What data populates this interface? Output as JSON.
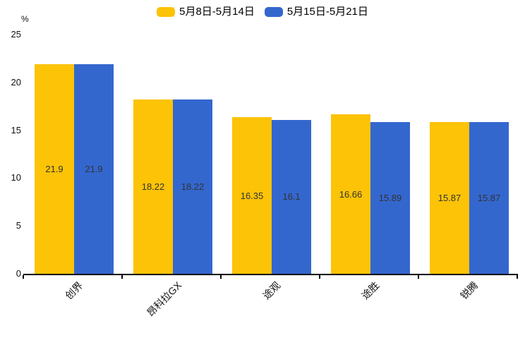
{
  "chart_data": {
    "type": "bar",
    "title": "",
    "unit_label": "%",
    "xlabel": "",
    "ylabel": "%",
    "categories": [
      "创界",
      "昂科拉GX",
      "途观",
      "途胜",
      "锐腾"
    ],
    "series": [
      {
        "name": "5月8日-5月14日",
        "color": "#FCC307",
        "values": [
          21.9,
          18.22,
          16.35,
          16.66,
          15.87
        ]
      },
      {
        "name": "5月15日-5月21日",
        "color": "#3467CE",
        "values": [
          21.9,
          18.22,
          16.1,
          15.89,
          15.87
        ]
      }
    ],
    "ylim": [
      0,
      25
    ],
    "y_ticks": [
      0,
      5,
      10,
      15,
      20,
      25
    ],
    "grid": false,
    "legend_position": "top-center",
    "value_label_color": "#333333",
    "axis_color": "#000000"
  }
}
